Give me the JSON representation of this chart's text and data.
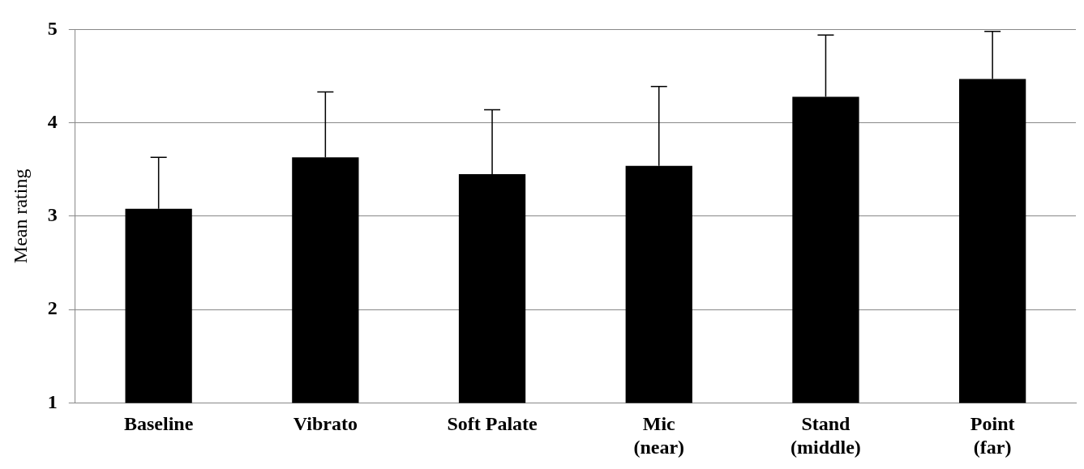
{
  "chart_data": {
    "type": "bar",
    "ylabel": "Mean rating",
    "categories": [
      "Baseline",
      "Vibrato",
      "Soft Palate",
      "Mic\n(near)",
      "Stand\n(middle)",
      "Point\n(far)"
    ],
    "values": [
      3.08,
      3.63,
      3.45,
      3.54,
      4.28,
      4.47
    ],
    "errors": [
      [
        3.08,
        3.63
      ],
      [
        3.63,
        4.33
      ],
      [
        3.45,
        4.14
      ],
      [
        3.54,
        4.39
      ],
      [
        4.28,
        4.94
      ],
      [
        4.47,
        4.98
      ]
    ],
    "color": "#000000",
    "ylim": [
      1,
      5
    ],
    "yticks": [
      1,
      2,
      3,
      4,
      5
    ],
    "grid": "y",
    "legend": false
  }
}
